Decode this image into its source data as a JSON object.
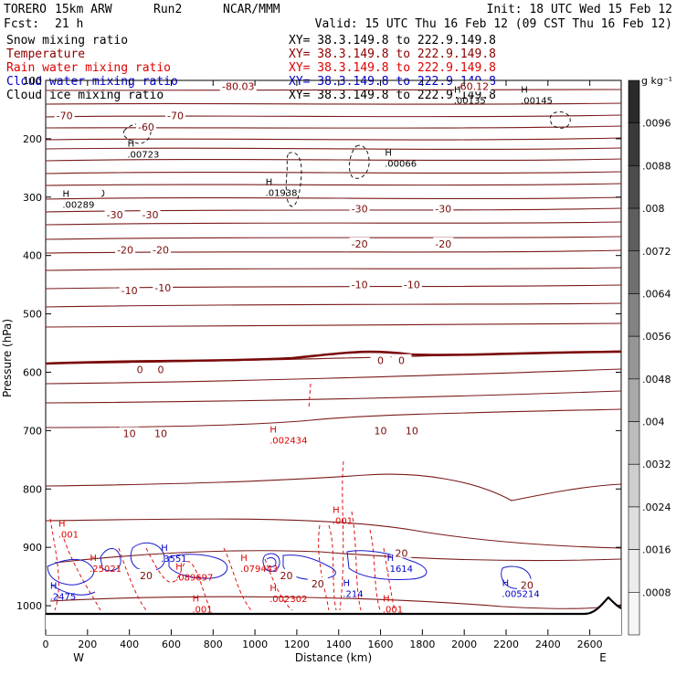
{
  "header": {
    "model": "TORERO",
    "resolution": "15km ARW",
    "run": "Run2",
    "center": "NCAR/MMM",
    "init": "Init: 18 UTC Wed 15 Feb 12",
    "fcst_label": "Fcst:",
    "fcst_value": "21 h",
    "valid": "Valid: 15 UTC Thu 16 Feb 12 (09 CST Thu 16 Feb 12)"
  },
  "fields": [
    {
      "name": "Snow mixing ratio",
      "color": "#000000",
      "xy": "XY=  38.3.149.8 to 222.9.149.8"
    },
    {
      "name": "Temperature",
      "color": "#8b0000",
      "xy": "XY=  38.3.149.8 to 222.9.149.8"
    },
    {
      "name": "Rain water mixing ratio",
      "color": "#dd0000",
      "xy": "XY=  38.3.149.8 to 222.9.149.8"
    },
    {
      "name": "Cloud water mixing ratio",
      "color": "#0000cc",
      "xy": "XY=  38.3.149.8 to 222.9.149.8"
    },
    {
      "name": "Cloud ice mixing ratio",
      "color": "#000000",
      "xy": "XY=  38.3.149.8 to 222.9.149.8"
    }
  ],
  "chart_data": {
    "type": "contour_cross_section",
    "xlabel": "Distance (km)",
    "ylabel": "Pressure (hPa)",
    "xlim": [
      0,
      2750
    ],
    "ylim": [
      1050,
      100
    ],
    "x_ticks": [
      0,
      200,
      400,
      600,
      800,
      1000,
      1200,
      1400,
      1600,
      1800,
      2000,
      2200,
      2400,
      2600
    ],
    "y_ticks": [
      200,
      300,
      400,
      500,
      600,
      700,
      800,
      900,
      1000
    ],
    "y_top_label": "100",
    "west_label": "W",
    "east_label": "E",
    "colorbar": {
      "unit": "g kg⁻¹",
      "levels": [
        ".0096",
        ".0088",
        ".008",
        ".0072",
        ".0064",
        ".0056",
        ".0048",
        ".004",
        ".0032",
        ".0024",
        ".0016",
        ".0008"
      ],
      "colors_top_to_bottom": [
        "#2a2a2a",
        "#3a3a3a",
        "#4c4c4c",
        "#5e5e5e",
        "#707070",
        "#838383",
        "#969696",
        "#a9a9a9",
        "#bcbcbc",
        "#cecece",
        "#dedede",
        "#ececec",
        "#f6f6f6"
      ]
    },
    "temperature_isotherms_C": [
      -70,
      -60,
      -30,
      -20,
      -10,
      0,
      10,
      20
    ],
    "temperature_labels": [
      {
        "text": "-70",
        "x": 90,
        "p": 160
      },
      {
        "text": "-70",
        "x": 620,
        "p": 160
      },
      {
        "text": "-60",
        "x": 480,
        "p": 180
      },
      {
        "text": "-30",
        "x": 330,
        "p": 330
      },
      {
        "text": "-30",
        "x": 500,
        "p": 330
      },
      {
        "text": "-30",
        "x": 1500,
        "p": 320
      },
      {
        "text": "-30",
        "x": 1900,
        "p": 320
      },
      {
        "text": "-20",
        "x": 380,
        "p": 390
      },
      {
        "text": "-20",
        "x": 550,
        "p": 390
      },
      {
        "text": "-20",
        "x": 1500,
        "p": 380
      },
      {
        "text": "-20",
        "x": 1900,
        "p": 380
      },
      {
        "text": "-10",
        "x": 400,
        "p": 460
      },
      {
        "text": "-10",
        "x": 560,
        "p": 455
      },
      {
        "text": "-10",
        "x": 1500,
        "p": 450
      },
      {
        "text": "-10",
        "x": 1750,
        "p": 450
      },
      {
        "text": "0",
        "x": 450,
        "p": 595
      },
      {
        "text": "0",
        "x": 550,
        "p": 595
      },
      {
        "text": "0",
        "x": 1600,
        "p": 580
      },
      {
        "text": "0",
        "x": 1700,
        "p": 580
      },
      {
        "text": "10",
        "x": 400,
        "p": 705
      },
      {
        "text": "10",
        "x": 550,
        "p": 705
      },
      {
        "text": "10",
        "x": 1600,
        "p": 700
      },
      {
        "text": "10",
        "x": 1750,
        "p": 700
      },
      {
        "text": "20",
        "x": 1700,
        "p": 910
      },
      {
        "text": "20",
        "x": 480,
        "p": 948
      },
      {
        "text": "20",
        "x": 1150,
        "p": 948
      },
      {
        "text": "20",
        "x": 1300,
        "p": 962
      },
      {
        "text": "20",
        "x": 2300,
        "p": 965
      }
    ],
    "top_labels": [
      {
        "text": "-80.03",
        "x": 920,
        "p": 110,
        "color": "#8b0000"
      },
      {
        "text": "-60.12",
        "x": 2040,
        "p": 110,
        "color": "#8b0000"
      }
    ],
    "maxima": [
      {
        "field": "snow",
        "text": ".00135",
        "x": 1950,
        "p": 140,
        "color": "#000000"
      },
      {
        "field": "snow",
        "text": ".00145",
        "x": 2270,
        "p": 140,
        "color": "#000000"
      },
      {
        "field": "snow",
        "text": ".00723",
        "x": 390,
        "p": 232,
        "color": "#000000"
      },
      {
        "field": "snow",
        "text": ".00066",
        "x": 1620,
        "p": 248,
        "color": "#000000"
      },
      {
        "field": "snow",
        "text": ".00289",
        "x": 80,
        "p": 318,
        "color": "#000000"
      },
      {
        "field": "snow",
        "text": ".01938",
        "x": 1050,
        "p": 298,
        "color": "#000000"
      },
      {
        "field": "rain",
        "text": ".002434",
        "x": 1070,
        "p": 722,
        "color": "#dd0000"
      },
      {
        "field": "rain",
        "text": ".001",
        "x": 60,
        "p": 883,
        "color": "#dd0000"
      },
      {
        "field": "rain",
        "text": ".001",
        "x": 1370,
        "p": 860,
        "color": "#dd0000"
      },
      {
        "field": "cloudwater",
        "text": ".3551",
        "x": 550,
        "p": 925,
        "color": "#0000cc"
      },
      {
        "field": "cloudwater",
        "text": ".2475",
        "x": 20,
        "p": 990,
        "color": "#0000cc"
      },
      {
        "field": "rain",
        "text": ".25021",
        "x": 210,
        "p": 942,
        "color": "#dd0000"
      },
      {
        "field": "rain",
        "text": ".089697",
        "x": 620,
        "p": 957,
        "color": "#dd0000"
      },
      {
        "field": "rain",
        "text": ".079443",
        "x": 930,
        "p": 942,
        "color": "#dd0000"
      },
      {
        "field": "rain",
        "text": ".002302",
        "x": 1070,
        "p": 994,
        "color": "#dd0000"
      },
      {
        "field": "cloudwater",
        "text": ".214",
        "x": 1420,
        "p": 985,
        "color": "#0000cc"
      },
      {
        "field": "cloudwater",
        "text": ".1614",
        "x": 1630,
        "p": 942,
        "color": "#0000cc"
      },
      {
        "field": "cloudwater",
        "text": ".005214",
        "x": 2180,
        "p": 985,
        "color": "#0000cc"
      },
      {
        "field": "rain",
        "text": ".001",
        "x": 700,
        "p": 1012,
        "color": "#dd0000"
      },
      {
        "field": "rain",
        "text": ".001",
        "x": 1610,
        "p": 1012,
        "color": "#dd0000"
      }
    ]
  }
}
